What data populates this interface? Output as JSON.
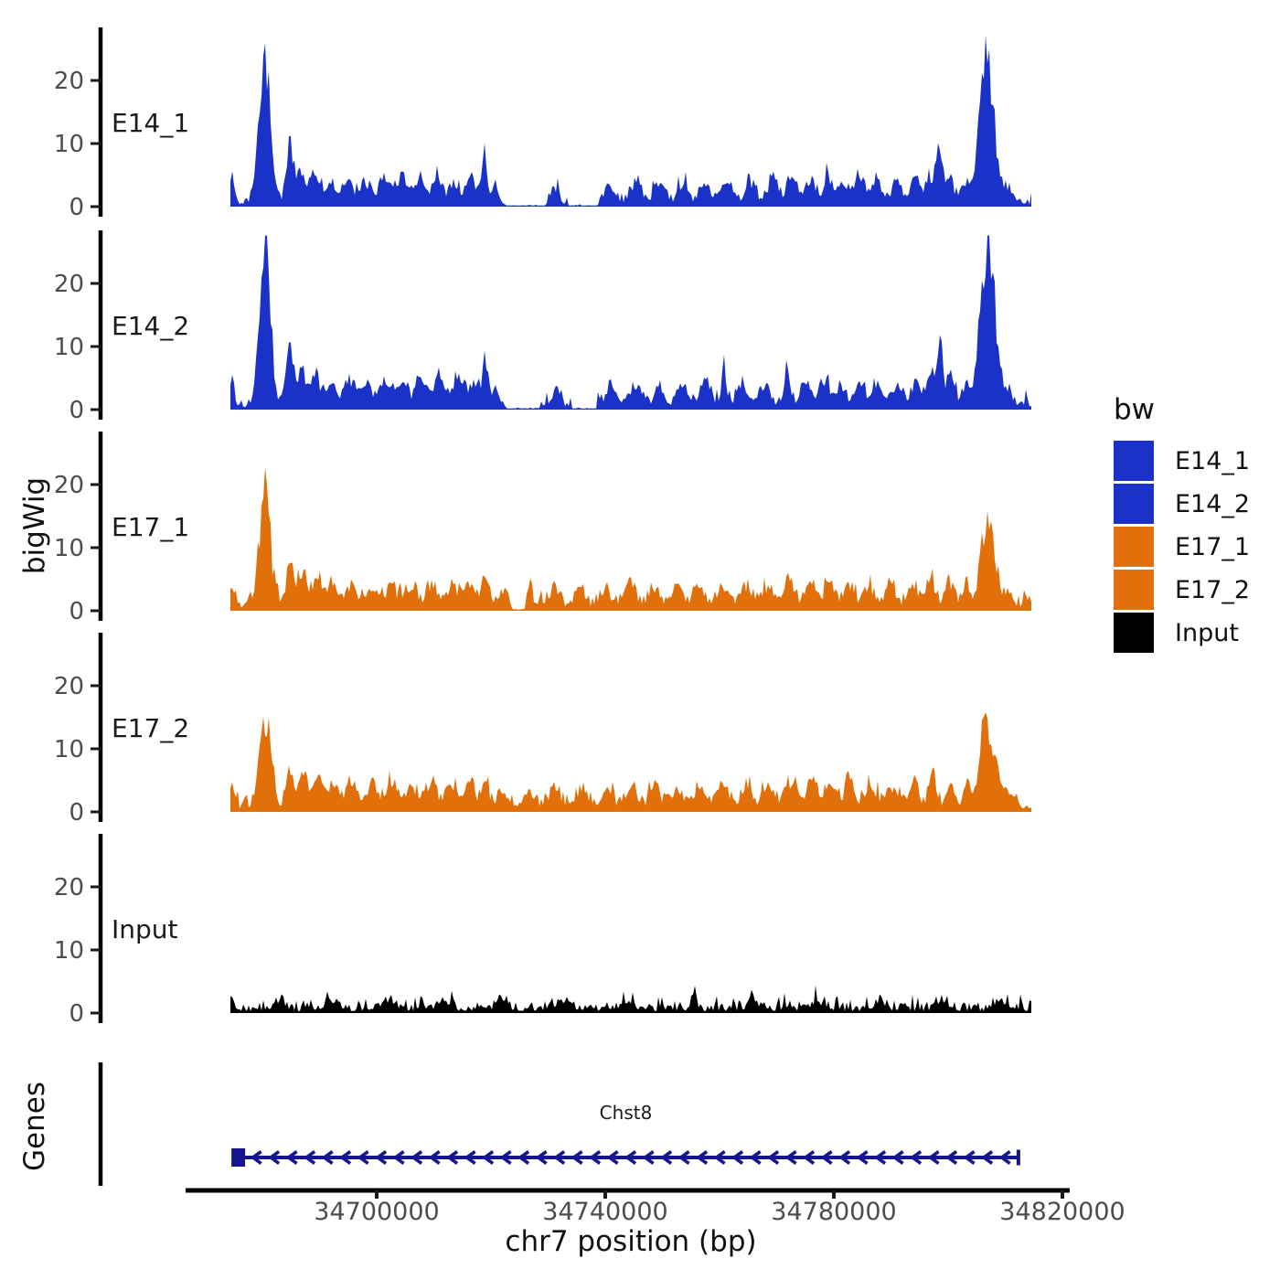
{
  "labels": {
    "y_left": "bigWig",
    "genes": "Genes",
    "x": "chr7 position (bp)"
  },
  "legend": {
    "title": "bw",
    "items": [
      {
        "label": "E14_1",
        "color": "#1B32C8"
      },
      {
        "label": "E14_2",
        "color": "#1B32C8"
      },
      {
        "label": "E17_1",
        "color": "#E1700A"
      },
      {
        "label": "E17_2",
        "color": "#E1700A"
      },
      {
        "label": "Input",
        "color": "#000000"
      }
    ]
  },
  "chart_data": {
    "type": "area",
    "title": "",
    "xlabel": "chr7 position (bp)",
    "ylabel": "bigWig",
    "x_ticks": [
      34700000,
      34740000,
      34780000,
      34820000
    ],
    "x_range": [
      34674400,
      34814600
    ],
    "y_ticks": [
      0,
      10,
      20
    ],
    "ylim": [
      0,
      28
    ],
    "grid": false,
    "legend_position": "right",
    "peaks_format": "position_bp, height, width_bp",
    "tracks": [
      {
        "name": "E14_1",
        "color": "#1B32C8",
        "seed": 11,
        "base": 1.15,
        "peaks": [
          [
            34674700,
            4.5,
            900
          ],
          [
            34679300,
            6,
            1500
          ],
          [
            34680400,
            24,
            1600
          ],
          [
            34681500,
            6.5,
            1400
          ],
          [
            34684800,
            10,
            1400
          ],
          [
            34686800,
            4.5,
            1600
          ],
          [
            34689000,
            4.5,
            1800
          ],
          [
            34691800,
            3.5,
            2000
          ],
          [
            34695000,
            3.5,
            2200
          ],
          [
            34698300,
            3.2,
            2000
          ],
          [
            34701500,
            4.2,
            2200
          ],
          [
            34704500,
            4,
            2000
          ],
          [
            34707500,
            3.8,
            2000
          ],
          [
            34710500,
            4.6,
            1800
          ],
          [
            34713500,
            4,
            1800
          ],
          [
            34716500,
            4.4,
            1800
          ],
          [
            34718900,
            8,
            1100
          ],
          [
            34720800,
            3,
            1200
          ],
          [
            34731200,
            2.8,
            1400
          ],
          [
            34740800,
            3,
            2000
          ],
          [
            34745500,
            3.4,
            2000
          ],
          [
            34749500,
            3.2,
            1800
          ],
          [
            34753500,
            3.2,
            1800
          ],
          [
            34757500,
            3.4,
            2000
          ],
          [
            34761500,
            3.6,
            1800
          ],
          [
            34765500,
            3.2,
            2000
          ],
          [
            34769500,
            3.6,
            2000
          ],
          [
            34772800,
            4,
            1800
          ],
          [
            34776000,
            3.8,
            1800
          ],
          [
            34779000,
            4.3,
            1800
          ],
          [
            34781800,
            3.6,
            1800
          ],
          [
            34784500,
            4,
            1800
          ],
          [
            34787500,
            3.4,
            2000
          ],
          [
            34791000,
            3.2,
            2000
          ],
          [
            34794200,
            4,
            1800
          ],
          [
            34796800,
            4.6,
            1500
          ],
          [
            34798400,
            8.5,
            1100
          ],
          [
            34800300,
            5,
            1300
          ],
          [
            34803000,
            3.6,
            1500
          ],
          [
            34805500,
            11,
            1500
          ],
          [
            34806900,
            23.5,
            1700
          ],
          [
            34808300,
            7.5,
            1500
          ],
          [
            34810400,
            2.6,
            1600
          ]
        ],
        "gaps": [
          [
            34722500,
            34729500
          ],
          [
            34733500,
            34739000
          ]
        ]
      },
      {
        "name": "E14_2",
        "color": "#1B32C8",
        "seed": 22,
        "base": 1.2,
        "peaks": [
          [
            34674700,
            4.8,
            900
          ],
          [
            34679300,
            6,
            1500
          ],
          [
            34680400,
            24.5,
            1600
          ],
          [
            34681500,
            7,
            1400
          ],
          [
            34684800,
            10.5,
            1400
          ],
          [
            34686800,
            5.5,
            1600
          ],
          [
            34689200,
            5,
            1800
          ],
          [
            34692000,
            4,
            2000
          ],
          [
            34695200,
            3.6,
            2200
          ],
          [
            34698300,
            3.4,
            2000
          ],
          [
            34701500,
            4,
            2200
          ],
          [
            34704500,
            4.2,
            2000
          ],
          [
            34707800,
            4.4,
            2000
          ],
          [
            34711000,
            5,
            1800
          ],
          [
            34714000,
            4.4,
            1800
          ],
          [
            34717000,
            4.6,
            1800
          ],
          [
            34719000,
            7.5,
            1100
          ],
          [
            34721000,
            3,
            1200
          ],
          [
            34731500,
            2.6,
            1400
          ],
          [
            34741000,
            3,
            2000
          ],
          [
            34745500,
            3.2,
            2000
          ],
          [
            34749500,
            3.4,
            1800
          ],
          [
            34753500,
            3.2,
            1800
          ],
          [
            34757500,
            3.4,
            2000
          ],
          [
            34760800,
            6,
            900
          ],
          [
            34764000,
            3.4,
            2000
          ],
          [
            34768000,
            3.6,
            2000
          ],
          [
            34771800,
            6,
            900
          ],
          [
            34775000,
            3.8,
            1800
          ],
          [
            34778200,
            4.2,
            1800
          ],
          [
            34781200,
            3.8,
            1800
          ],
          [
            34784500,
            4,
            1800
          ],
          [
            34787500,
            3.6,
            2000
          ],
          [
            34791000,
            3.4,
            2000
          ],
          [
            34794500,
            4.2,
            1800
          ],
          [
            34797000,
            5,
            1400
          ],
          [
            34798600,
            11,
            1100
          ],
          [
            34800500,
            5,
            1300
          ],
          [
            34803200,
            4,
            1500
          ],
          [
            34805600,
            12,
            1500
          ],
          [
            34807000,
            26.5,
            1700
          ],
          [
            34808400,
            9,
            1500
          ],
          [
            34810400,
            3,
            1600
          ]
        ],
        "gaps": [
          [
            34722500,
            34728500
          ],
          [
            34734000,
            34738500
          ]
        ]
      },
      {
        "name": "E17_1",
        "color": "#E1700A",
        "seed": 33,
        "base": 1.55,
        "peaks": [
          [
            34674700,
            3,
            900
          ],
          [
            34679500,
            5,
            1500
          ],
          [
            34680400,
            17,
            1500
          ],
          [
            34681600,
            5,
            1400
          ],
          [
            34684800,
            6.5,
            1400
          ],
          [
            34687000,
            5,
            1700
          ],
          [
            34689500,
            4.2,
            1800
          ],
          [
            34692200,
            3.6,
            2000
          ],
          [
            34695500,
            3.2,
            2200
          ],
          [
            34699000,
            3,
            2000
          ],
          [
            34702500,
            3.2,
            2200
          ],
          [
            34706000,
            3,
            2000
          ],
          [
            34709500,
            3.4,
            2000
          ],
          [
            34713000,
            3.2,
            2000
          ],
          [
            34716200,
            3.6,
            1800
          ],
          [
            34718900,
            5,
            1200
          ],
          [
            34722000,
            2.2,
            1600
          ],
          [
            34726500,
            2.2,
            1800
          ],
          [
            34731000,
            2.6,
            2000
          ],
          [
            34735500,
            2.4,
            2000
          ],
          [
            34740000,
            2.8,
            2000
          ],
          [
            34744500,
            3,
            2000
          ],
          [
            34748500,
            2.8,
            2000
          ],
          [
            34752500,
            3,
            2000
          ],
          [
            34756500,
            3,
            2000
          ],
          [
            34760500,
            3.4,
            2000
          ],
          [
            34764500,
            3,
            2000
          ],
          [
            34768500,
            3.2,
            2000
          ],
          [
            34772200,
            3.6,
            2000
          ],
          [
            34775800,
            4,
            1800
          ],
          [
            34779200,
            3.4,
            1800
          ],
          [
            34782500,
            3.6,
            1800
          ],
          [
            34786000,
            3.2,
            2000
          ],
          [
            34790000,
            3,
            2000
          ],
          [
            34793800,
            3.6,
            1800
          ],
          [
            34797000,
            5,
            1400
          ],
          [
            34800200,
            4,
            1500
          ],
          [
            34803200,
            3.4,
            1500
          ],
          [
            34805700,
            6.5,
            1400
          ],
          [
            34807000,
            13,
            1600
          ],
          [
            34808400,
            5.5,
            1400
          ],
          [
            34810400,
            2.4,
            1600
          ]
        ],
        "gaps": [
          [
            34723500,
            34726000
          ]
        ]
      },
      {
        "name": "E17_2",
        "color": "#E1700A",
        "seed": 44,
        "base": 1.65,
        "peaks": [
          [
            34674700,
            3,
            900
          ],
          [
            34679500,
            4.5,
            1500
          ],
          [
            34680500,
            12,
            1500
          ],
          [
            34681600,
            5,
            1400
          ],
          [
            34684900,
            6.5,
            1400
          ],
          [
            34687200,
            5,
            1700
          ],
          [
            34689700,
            4.4,
            1800
          ],
          [
            34692400,
            3.8,
            2000
          ],
          [
            34695700,
            3.4,
            2200
          ],
          [
            34699200,
            3.2,
            2000
          ],
          [
            34702700,
            3.4,
            2200
          ],
          [
            34706200,
            3.2,
            2000
          ],
          [
            34709700,
            3.6,
            2000
          ],
          [
            34713200,
            3.4,
            2000
          ],
          [
            34716400,
            3.8,
            1800
          ],
          [
            34719000,
            5,
            1200
          ],
          [
            34722200,
            2.4,
            1600
          ],
          [
            34726700,
            2.4,
            1800
          ],
          [
            34731200,
            2.8,
            2000
          ],
          [
            34735700,
            2.6,
            2000
          ],
          [
            34740200,
            3,
            2000
          ],
          [
            34744700,
            3.2,
            2000
          ],
          [
            34748700,
            3,
            2000
          ],
          [
            34752700,
            3.2,
            2000
          ],
          [
            34756700,
            3.2,
            2000
          ],
          [
            34760700,
            3.6,
            2000
          ],
          [
            34764700,
            3.2,
            2000
          ],
          [
            34768700,
            3.4,
            2000
          ],
          [
            34772400,
            3.8,
            2000
          ],
          [
            34776000,
            4.2,
            1800
          ],
          [
            34779400,
            3.6,
            1800
          ],
          [
            34782700,
            3.8,
            1800
          ],
          [
            34786200,
            3.4,
            2000
          ],
          [
            34790200,
            3.2,
            2000
          ],
          [
            34794000,
            3.8,
            1800
          ],
          [
            34797200,
            7,
            1200
          ],
          [
            34800400,
            4,
            1500
          ],
          [
            34803400,
            3.6,
            1500
          ],
          [
            34805800,
            6.5,
            1400
          ],
          [
            34806900,
            12.5,
            1600
          ],
          [
            34808400,
            6,
            1400
          ],
          [
            34810500,
            2.6,
            1600
          ]
        ],
        "gaps": []
      },
      {
        "name": "Input",
        "color": "#000000",
        "seed": 55,
        "base": 1.05,
        "peaks": [
          [
            34674700,
            1.8,
            900
          ],
          [
            34683000,
            1.5,
            2000
          ],
          [
            34692000,
            1.4,
            2000
          ],
          [
            34702000,
            1.5,
            2000
          ],
          [
            34712000,
            1.5,
            2000
          ],
          [
            34722000,
            1.4,
            2000
          ],
          [
            34733000,
            1.6,
            2000
          ],
          [
            34744000,
            1.5,
            2000
          ],
          [
            34755500,
            2,
            1200
          ],
          [
            34766000,
            1.5,
            2000
          ],
          [
            34777000,
            1.6,
            2000
          ],
          [
            34788000,
            1.5,
            2000
          ],
          [
            34799000,
            1.5,
            2000
          ],
          [
            34809000,
            1.5,
            2000
          ]
        ],
        "gaps": []
      }
    ],
    "gene_track": {
      "label": "Genes",
      "genes": [
        {
          "name": "Chst8",
          "start": 34674900,
          "end": 34812300,
          "strand": "-",
          "color": "#15158F"
        }
      ]
    }
  }
}
